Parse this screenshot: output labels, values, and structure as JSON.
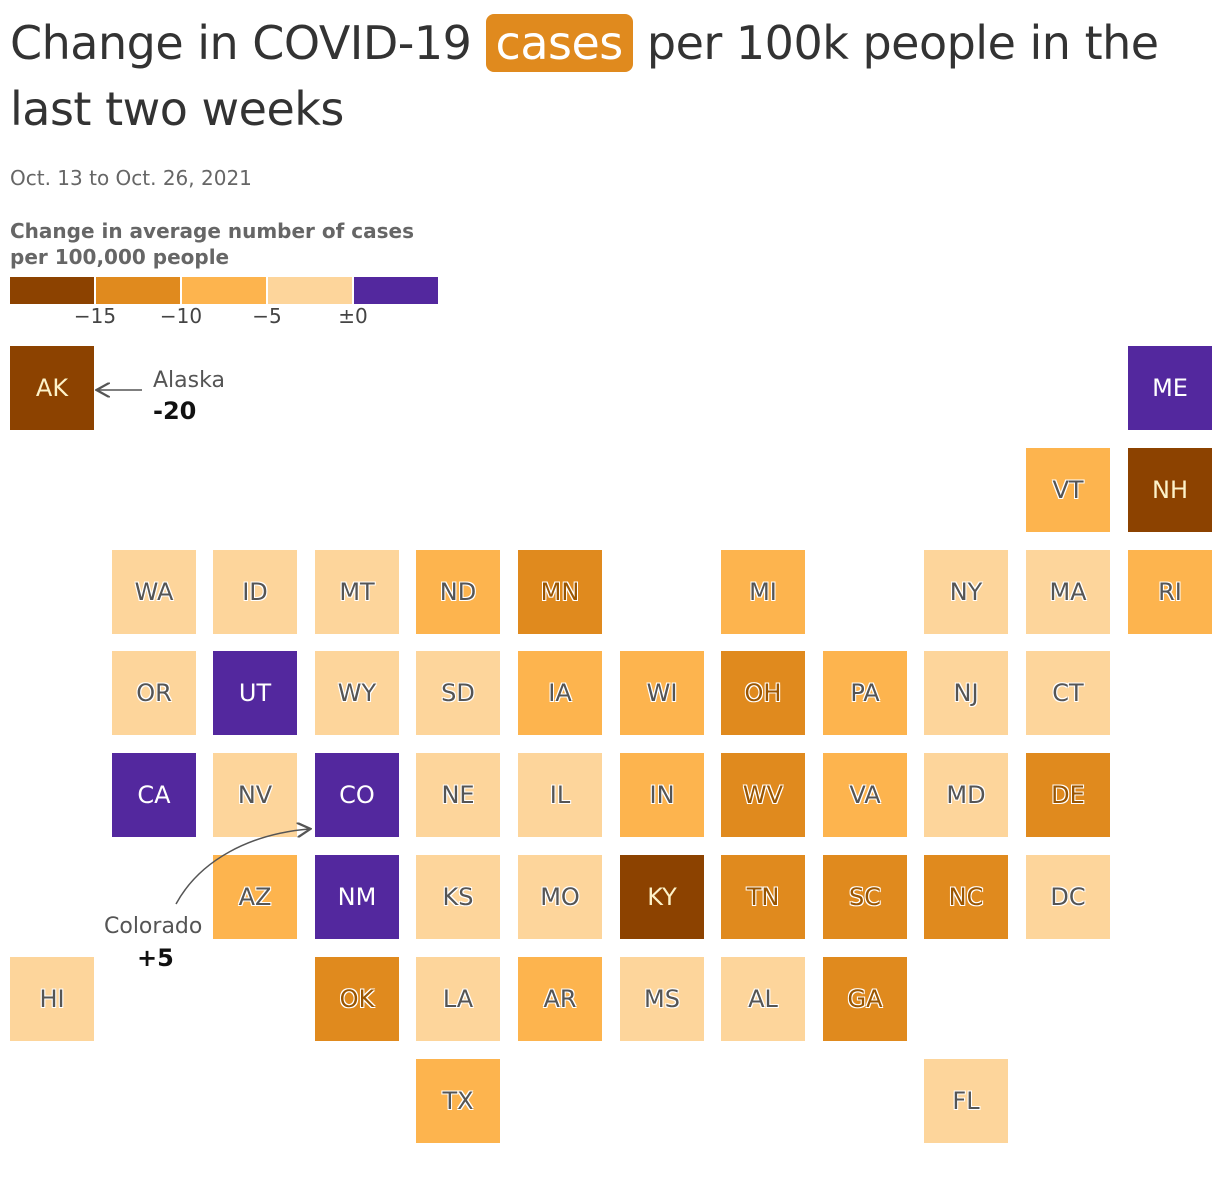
{
  "title": {
    "before": "Change in COVID-19 ",
    "highlight": "cases",
    "after": " per 100k people in the last two weeks",
    "highlight_color": "#e08a1e"
  },
  "subtitle": "Oct. 13 to Oct. 26, 2021",
  "legend": {
    "title": "Change in average number of cases per 100,000 people",
    "colors": [
      "#8c4200",
      "#e08a1e",
      "#fdb44e",
      "#fdd59b",
      "#53289e"
    ],
    "ticks": [
      "−15",
      "−10",
      "−5",
      "±0"
    ]
  },
  "chart_data": {
    "type": "tile-map",
    "bins": [
      {
        "range": [
          null,
          -15
        ],
        "color": "#8c4200"
      },
      {
        "range": [
          -15,
          -10
        ],
        "color": "#e08a1e"
      },
      {
        "range": [
          -10,
          -5
        ],
        "color": "#fdb44e"
      },
      {
        "range": [
          -5,
          0
        ],
        "color": "#fdd59b"
      },
      {
        "range": [
          0,
          null
        ],
        "color": "#53289e"
      }
    ],
    "states": [
      {
        "code": "AK",
        "bin": 0,
        "row": 0,
        "col": 0
      },
      {
        "code": "ME",
        "bin": 4,
        "row": 0,
        "col": 11
      },
      {
        "code": "VT",
        "bin": 2,
        "row": 1,
        "col": 10
      },
      {
        "code": "NH",
        "bin": 0,
        "row": 1,
        "col": 11
      },
      {
        "code": "WA",
        "bin": 3,
        "row": 2,
        "col": 1
      },
      {
        "code": "ID",
        "bin": 3,
        "row": 2,
        "col": 2
      },
      {
        "code": "MT",
        "bin": 3,
        "row": 2,
        "col": 3
      },
      {
        "code": "ND",
        "bin": 2,
        "row": 2,
        "col": 4
      },
      {
        "code": "MN",
        "bin": 1,
        "row": 2,
        "col": 5
      },
      {
        "code": "MI",
        "bin": 2,
        "row": 2,
        "col": 7
      },
      {
        "code": "NY",
        "bin": 3,
        "row": 2,
        "col": 9
      },
      {
        "code": "MA",
        "bin": 3,
        "row": 2,
        "col": 10
      },
      {
        "code": "RI",
        "bin": 2,
        "row": 2,
        "col": 11
      },
      {
        "code": "OR",
        "bin": 3,
        "row": 3,
        "col": 1
      },
      {
        "code": "UT",
        "bin": 4,
        "row": 3,
        "col": 2
      },
      {
        "code": "WY",
        "bin": 3,
        "row": 3,
        "col": 3
      },
      {
        "code": "SD",
        "bin": 3,
        "row": 3,
        "col": 4
      },
      {
        "code": "IA",
        "bin": 2,
        "row": 3,
        "col": 5
      },
      {
        "code": "WI",
        "bin": 2,
        "row": 3,
        "col": 6
      },
      {
        "code": "OH",
        "bin": 1,
        "row": 3,
        "col": 7
      },
      {
        "code": "PA",
        "bin": 2,
        "row": 3,
        "col": 8
      },
      {
        "code": "NJ",
        "bin": 3,
        "row": 3,
        "col": 9
      },
      {
        "code": "CT",
        "bin": 3,
        "row": 3,
        "col": 10
      },
      {
        "code": "CA",
        "bin": 4,
        "row": 4,
        "col": 1
      },
      {
        "code": "NV",
        "bin": 3,
        "row": 4,
        "col": 2
      },
      {
        "code": "CO",
        "bin": 4,
        "row": 4,
        "col": 3
      },
      {
        "code": "NE",
        "bin": 3,
        "row": 4,
        "col": 4
      },
      {
        "code": "IL",
        "bin": 3,
        "row": 4,
        "col": 5
      },
      {
        "code": "IN",
        "bin": 2,
        "row": 4,
        "col": 6
      },
      {
        "code": "WV",
        "bin": 1,
        "row": 4,
        "col": 7
      },
      {
        "code": "VA",
        "bin": 2,
        "row": 4,
        "col": 8
      },
      {
        "code": "MD",
        "bin": 3,
        "row": 4,
        "col": 9
      },
      {
        "code": "DE",
        "bin": 1,
        "row": 4,
        "col": 10
      },
      {
        "code": "AZ",
        "bin": 2,
        "row": 5,
        "col": 2
      },
      {
        "code": "NM",
        "bin": 4,
        "row": 5,
        "col": 3
      },
      {
        "code": "KS",
        "bin": 3,
        "row": 5,
        "col": 4
      },
      {
        "code": "MO",
        "bin": 3,
        "row": 5,
        "col": 5
      },
      {
        "code": "KY",
        "bin": 0,
        "row": 5,
        "col": 6
      },
      {
        "code": "TN",
        "bin": 1,
        "row": 5,
        "col": 7
      },
      {
        "code": "SC",
        "bin": 1,
        "row": 5,
        "col": 8
      },
      {
        "code": "NC",
        "bin": 1,
        "row": 5,
        "col": 9
      },
      {
        "code": "DC",
        "bin": 3,
        "row": 5,
        "col": 10
      },
      {
        "code": "HI",
        "bin": 3,
        "row": 6,
        "col": 0
      },
      {
        "code": "OK",
        "bin": 1,
        "row": 6,
        "col": 3
      },
      {
        "code": "LA",
        "bin": 3,
        "row": 6,
        "col": 4
      },
      {
        "code": "AR",
        "bin": 2,
        "row": 6,
        "col": 5
      },
      {
        "code": "MS",
        "bin": 3,
        "row": 6,
        "col": 6
      },
      {
        "code": "AL",
        "bin": 3,
        "row": 6,
        "col": 7
      },
      {
        "code": "GA",
        "bin": 1,
        "row": 6,
        "col": 8
      },
      {
        "code": "TX",
        "bin": 2,
        "row": 7,
        "col": 4
      },
      {
        "code": "FL",
        "bin": 3,
        "row": 7,
        "col": 9
      }
    ]
  },
  "annotations": {
    "alaska": {
      "name": "Alaska",
      "value": "-20"
    },
    "colorado": {
      "name": "Colorado",
      "value": "+5"
    }
  }
}
